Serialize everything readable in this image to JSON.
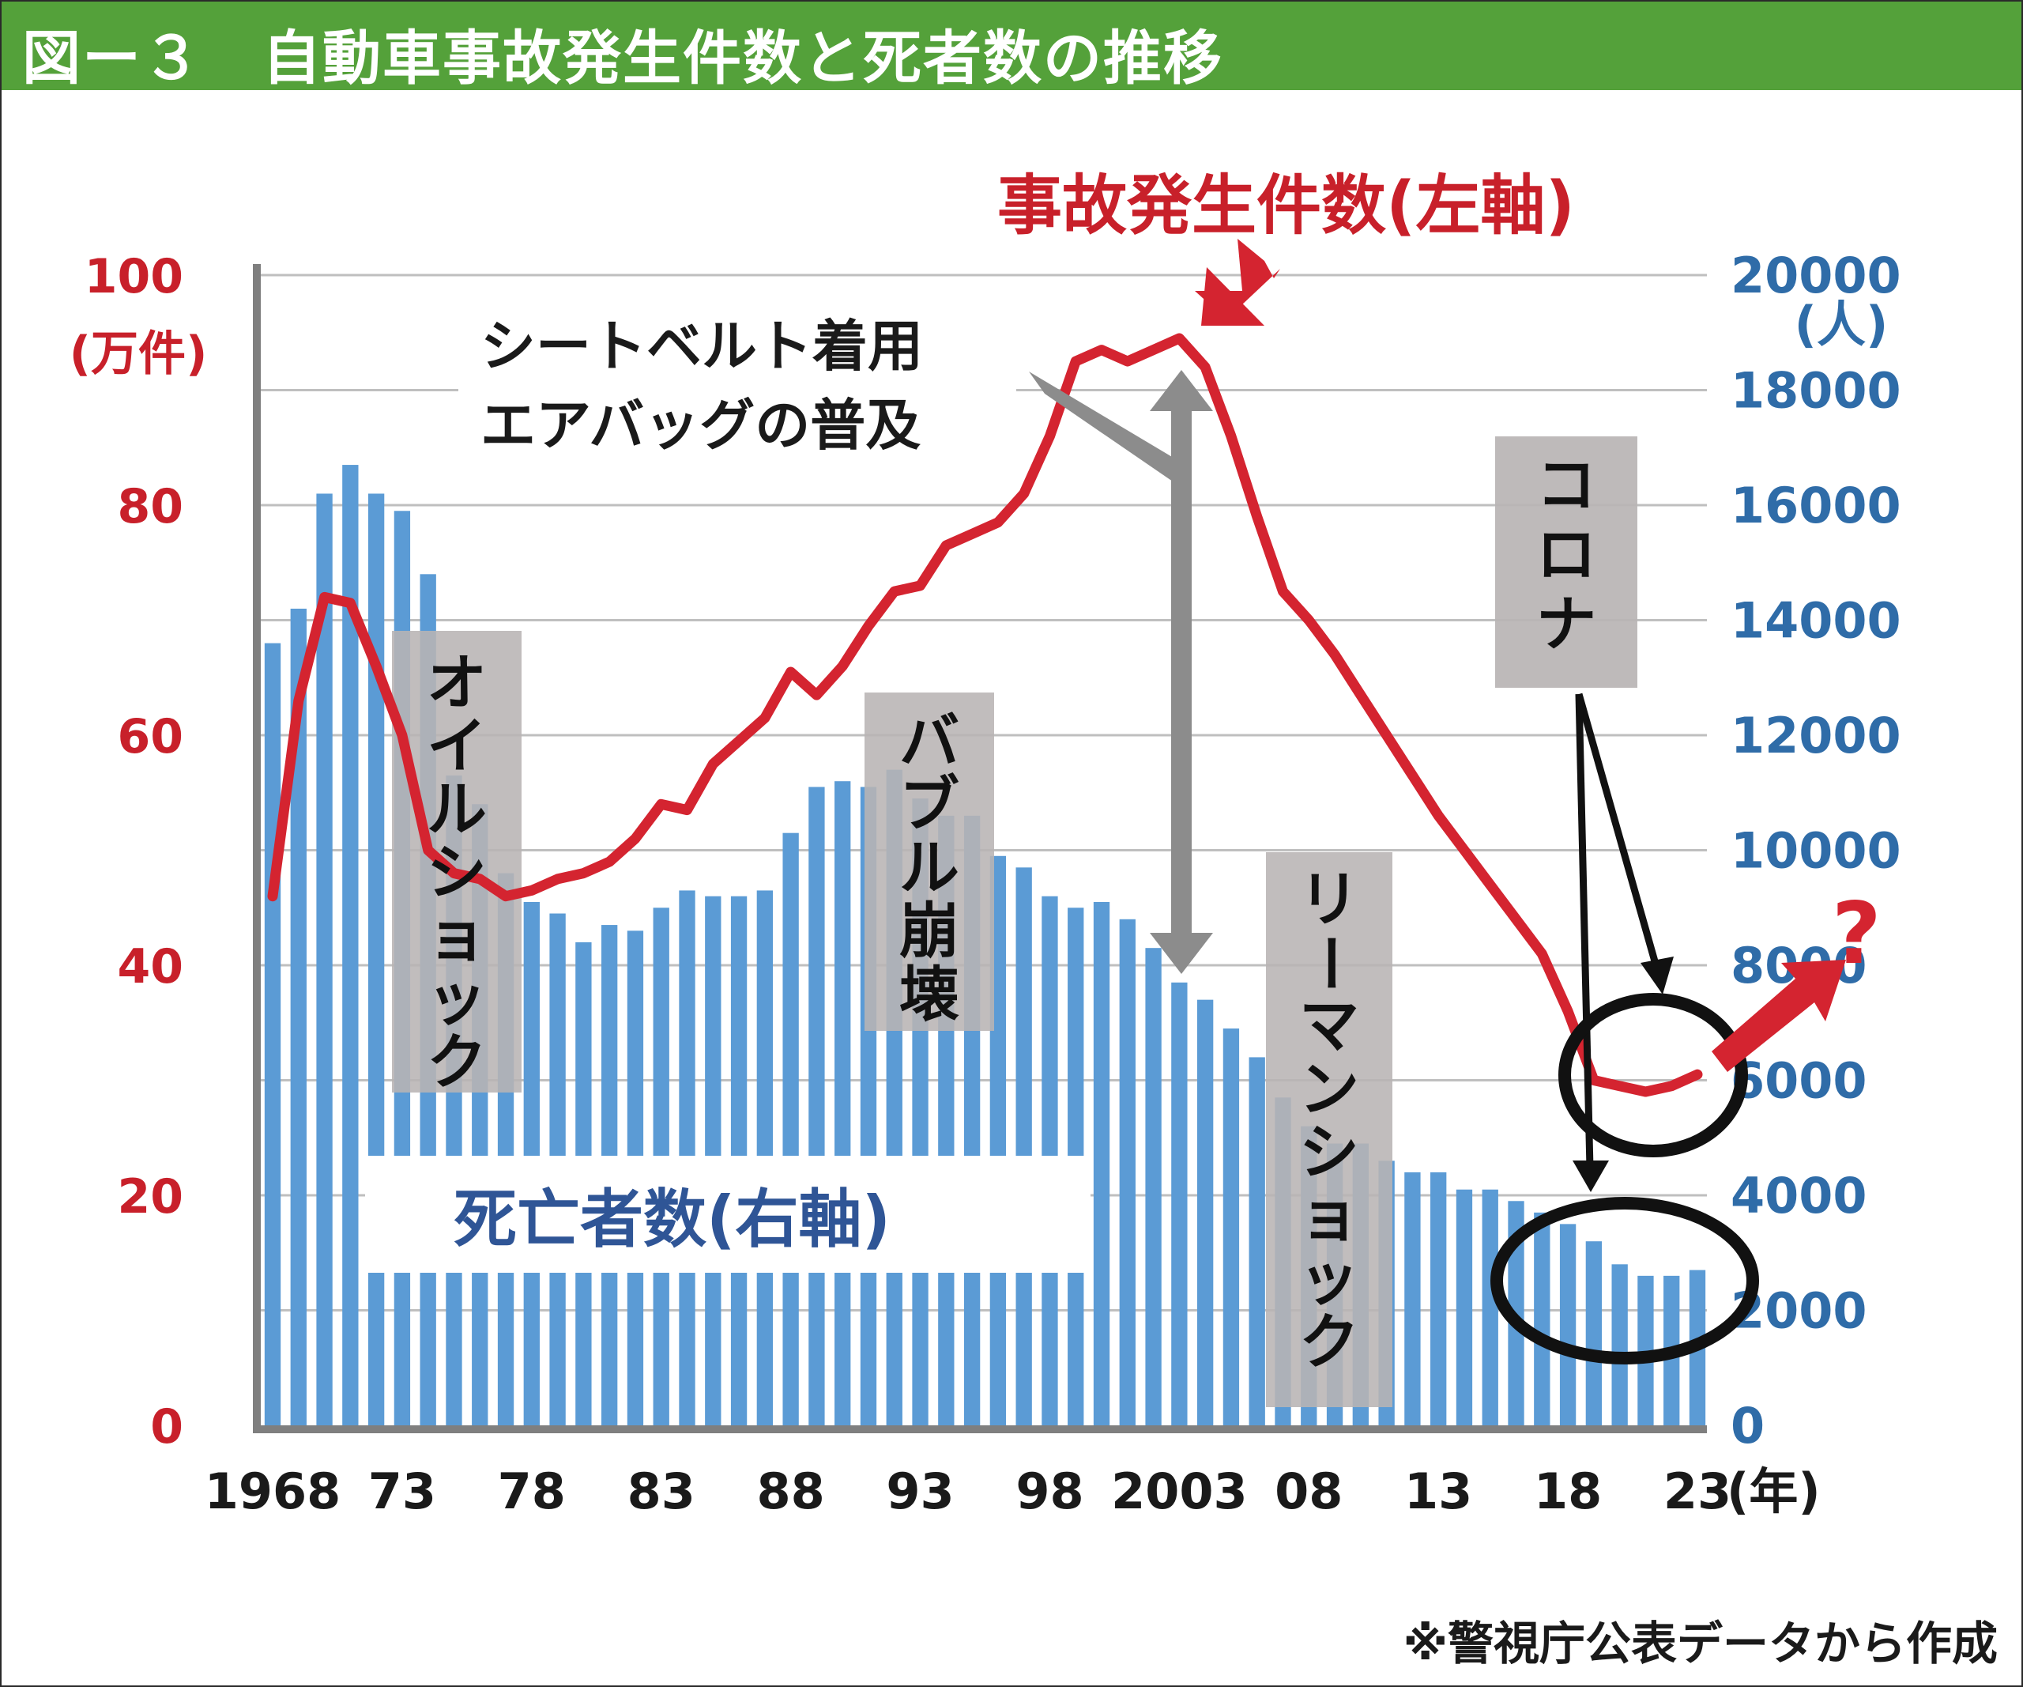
{
  "header": {
    "title": "図ー３　自動車事故発生件数と死者数の推移"
  },
  "footer": {
    "source": "※警視庁公表データから作成"
  },
  "colors": {
    "accidents_line": "#d42430",
    "deaths_bar": "#5b9bd5",
    "title_bar": "#54a13a",
    "annotation_box": "#b8b4b4"
  },
  "chart_data": {
    "type": "bar+line",
    "x_unit": "(年)",
    "x": [
      1968,
      1969,
      1970,
      1971,
      1972,
      1973,
      1974,
      1975,
      1976,
      1977,
      1978,
      1979,
      1980,
      1981,
      1982,
      1983,
      1984,
      1985,
      1986,
      1987,
      1988,
      1989,
      1990,
      1991,
      1992,
      1993,
      1994,
      1995,
      1996,
      1997,
      1998,
      1999,
      2000,
      2001,
      2002,
      2003,
      2004,
      2005,
      2006,
      2007,
      2008,
      2009,
      2010,
      2011,
      2012,
      2013,
      2014,
      2015,
      2016,
      2017,
      2018,
      2019,
      2020,
      2021,
      2022,
      2023
    ],
    "x_tick_labels": [
      {
        "year": 1968,
        "label": "1968"
      },
      {
        "year": 1973,
        "label": "73"
      },
      {
        "year": 1978,
        "label": "78"
      },
      {
        "year": 1983,
        "label": "83"
      },
      {
        "year": 1988,
        "label": "88"
      },
      {
        "year": 1993,
        "label": "93"
      },
      {
        "year": 1998,
        "label": "98"
      },
      {
        "year": 2003,
        "label": "2003"
      },
      {
        "year": 2008,
        "label": "08"
      },
      {
        "year": 2013,
        "label": "13"
      },
      {
        "year": 2018,
        "label": "18"
      },
      {
        "year": 2023,
        "label": "23"
      }
    ],
    "left_axis": {
      "unit": "(万件)",
      "ylim": [
        0,
        100
      ],
      "ticks": [
        "0",
        "20",
        "40",
        "60",
        "80",
        "100"
      ]
    },
    "right_axis": {
      "unit": "(人)",
      "ylim": [
        0,
        20000
      ],
      "ticks": [
        "0",
        "2000",
        "4000",
        "6000",
        "8000",
        "10000",
        "12000",
        "14000",
        "16000",
        "18000",
        "20000"
      ]
    },
    "grid": true,
    "series": [
      {
        "name": "事故発生件数(左軸)",
        "kind": "line",
        "axis": "left",
        "values": [
          46,
          63,
          72,
          71.5,
          66,
          60,
          50,
          48,
          47.5,
          46,
          46.5,
          47.5,
          48,
          49,
          51,
          54,
          53.5,
          57.5,
          59.5,
          61.5,
          65.5,
          63.5,
          66,
          69.5,
          72.5,
          73,
          76.5,
          77.5,
          78.5,
          81,
          86,
          92.5,
          93.5,
          92.5,
          93.5,
          94.5,
          92,
          86,
          79,
          72.5,
          70,
          67,
          63.5,
          60,
          56.5,
          53,
          50,
          47,
          44,
          41,
          36,
          30,
          29.5,
          29,
          29.5,
          30.5
        ]
      },
      {
        "name": "死亡者数(右軸)",
        "kind": "bar",
        "axis": "right",
        "values": [
          13600,
          14200,
          16200,
          16700,
          16200,
          15900,
          14800,
          11300,
          10800,
          9600,
          9100,
          8900,
          8400,
          8700,
          8600,
          9000,
          9300,
          9200,
          9200,
          9300,
          10300,
          11100,
          11200,
          11100,
          11400,
          10900,
          10600,
          10600,
          9900,
          9700,
          9200,
          9000,
          9100,
          8800,
          8300,
          7700,
          7400,
          6900,
          6400,
          5700,
          5200,
          4900,
          4900,
          4600,
          4400,
          4400,
          4100,
          4100,
          3900,
          3700,
          3500,
          3200,
          2800,
          2600,
          2600,
          2700
        ]
      }
    ],
    "annotations": {
      "oil_shock": "オイルショック",
      "bubble": "バブル崩壊",
      "lehman": "リーマンショック",
      "corona": "コロナ",
      "seatbelt_line1": "シートベルト着用",
      "seatbelt_line2": "エアバッグの普及",
      "question": "?"
    }
  }
}
